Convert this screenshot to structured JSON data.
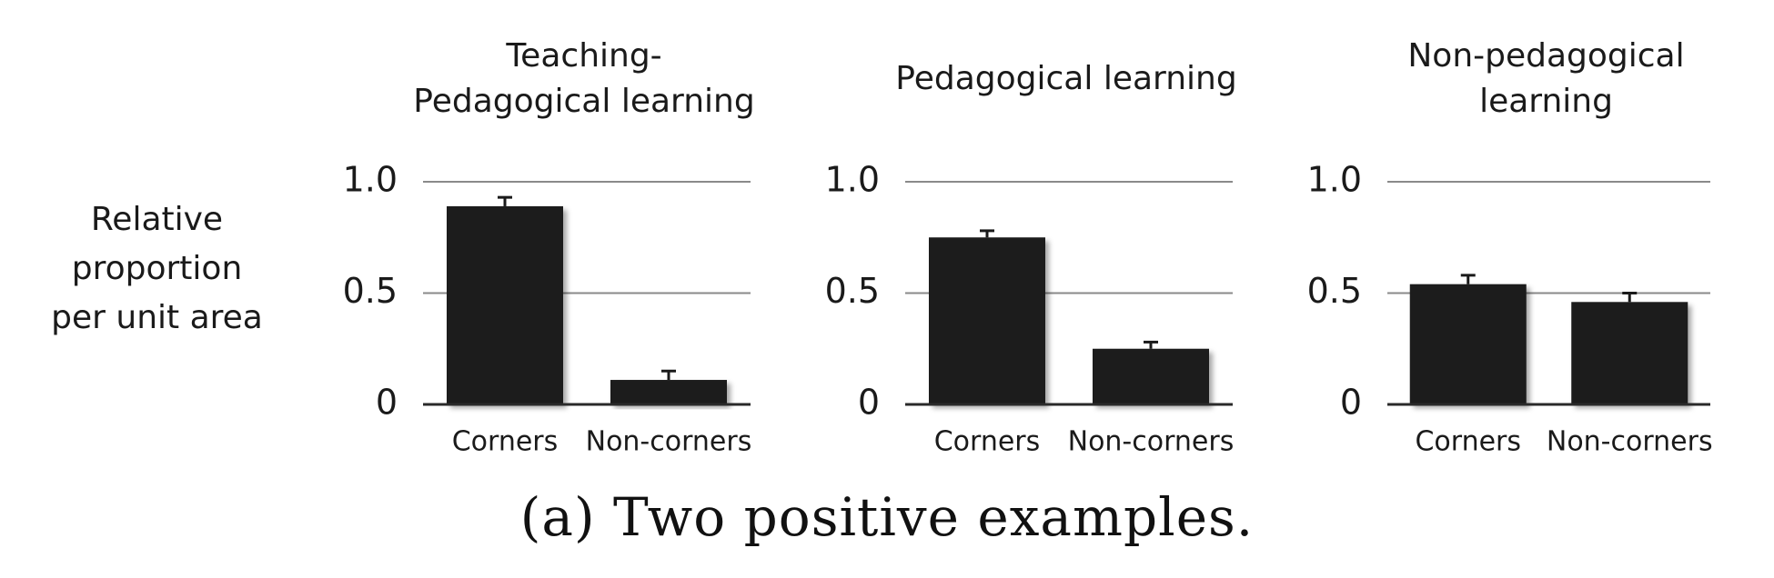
{
  "y_label_lines": [
    "Relative",
    "proportion",
    "per unit area"
  ],
  "caption": "(a) Two positive examples.",
  "colors": {
    "bar": "#1a1a1a",
    "grid": "#8a8a8a",
    "axis": "#2a2a2a",
    "text": "#1a1a1a"
  },
  "chart_data": [
    {
      "type": "bar",
      "title": "Teaching-\nPedagogical learning",
      "title_lines": [
        "Teaching-",
        "Pedagogical learning"
      ],
      "categories": [
        "Corners",
        "Non-corners"
      ],
      "values": [
        0.89,
        0.11
      ],
      "errors": [
        0.04,
        0.04
      ],
      "ylabel": "Relative proportion per unit area",
      "ylim": [
        0,
        1.0
      ],
      "yticks": [
        0,
        0.5,
        1.0
      ],
      "ytick_labels": [
        "0",
        "0.5",
        "1.0"
      ],
      "grid": true
    },
    {
      "type": "bar",
      "title": "Pedagogical learning",
      "title_lines": [
        "Pedagogical learning"
      ],
      "categories": [
        "Corners",
        "Non-corners"
      ],
      "values": [
        0.75,
        0.25
      ],
      "errors": [
        0.03,
        0.03
      ],
      "ylabel": "Relative proportion per unit area",
      "ylim": [
        0,
        1.0
      ],
      "yticks": [
        0,
        0.5,
        1.0
      ],
      "ytick_labels": [
        "0",
        "0.5",
        "1.0"
      ],
      "grid": true
    },
    {
      "type": "bar",
      "title": "Non-pedagogical\nlearning",
      "title_lines": [
        "Non-pedagogical",
        "learning"
      ],
      "categories": [
        "Corners",
        "Non-corners"
      ],
      "values": [
        0.54,
        0.46
      ],
      "errors": [
        0.04,
        0.04
      ],
      "ylabel": "Relative proportion per unit area",
      "ylim": [
        0,
        1.0
      ],
      "yticks": [
        0,
        0.5,
        1.0
      ],
      "ytick_labels": [
        "0",
        "0.5",
        "1.0"
      ],
      "grid": true
    }
  ]
}
